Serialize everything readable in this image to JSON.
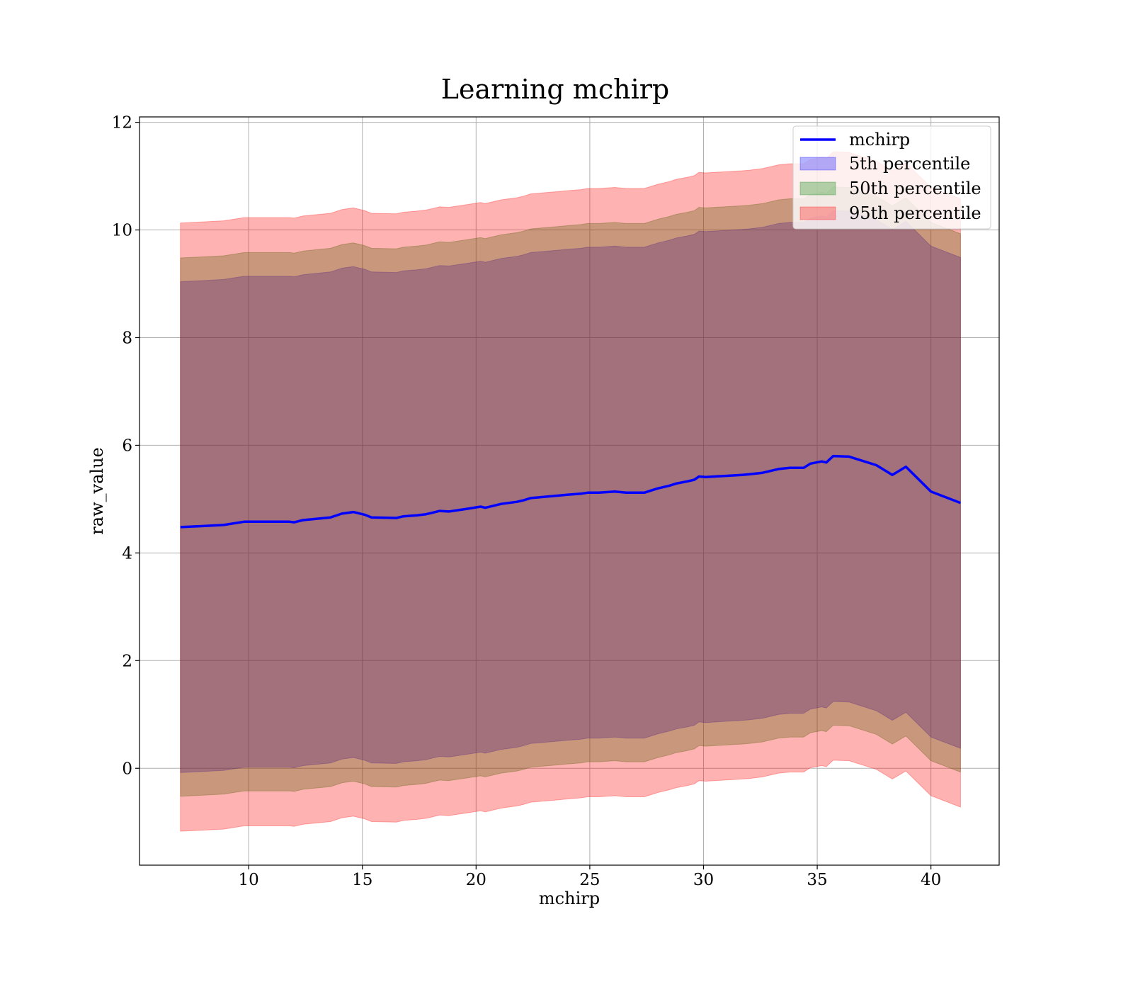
{
  "chart_data": {
    "type": "area",
    "title": "Learning mchirp",
    "xlabel": "mchirp",
    "ylabel": "raw_value",
    "xlim": [
      5.2,
      43.0
    ],
    "ylim": [
      -1.8,
      12.1
    ],
    "xticks": [
      10,
      15,
      20,
      25,
      30,
      35,
      40
    ],
    "yticks": [
      0,
      2,
      4,
      6,
      8,
      10,
      12
    ],
    "grid": true,
    "legend_position": "top-right",
    "line": {
      "name": "mchirp",
      "color": "#0000ff",
      "x": [
        7.0,
        8.0,
        8.9,
        9.8,
        11.8,
        12.0,
        12.4,
        13.6,
        14.1,
        14.6,
        15.1,
        15.4,
        16.5,
        16.6,
        16.8,
        17.4,
        17.8,
        18.1,
        18.4,
        18.8,
        19.6,
        20.2,
        20.4,
        20.7,
        21.1,
        21.8,
        22.1,
        22.4,
        23.5,
        24.0,
        24.6,
        24.9,
        25.4,
        26.1,
        26.6,
        27.4,
        27.7,
        28.0,
        28.5,
        28.8,
        29.3,
        29.6,
        29.8,
        30.1,
        31.3,
        31.7,
        32.0,
        32.6,
        33.3,
        33.8,
        34.4,
        34.7,
        35.2,
        35.4,
        35.7,
        36.4,
        37.6,
        38.3,
        38.9,
        40.0,
        41.3
      ],
      "y": [
        4.48,
        4.5,
        4.52,
        4.58,
        4.58,
        4.57,
        4.61,
        4.66,
        4.73,
        4.76,
        4.71,
        4.66,
        4.65,
        4.66,
        4.68,
        4.7,
        4.72,
        4.75,
        4.78,
        4.77,
        4.82,
        4.86,
        4.84,
        4.87,
        4.91,
        4.95,
        4.98,
        5.02,
        5.06,
        5.08,
        5.1,
        5.12,
        5.12,
        5.14,
        5.12,
        5.12,
        5.16,
        5.2,
        5.25,
        5.29,
        5.33,
        5.36,
        5.42,
        5.41,
        5.44,
        5.45,
        5.46,
        5.49,
        5.56,
        5.58,
        5.58,
        5.66,
        5.7,
        5.68,
        5.8,
        5.79,
        5.63,
        5.45,
        5.6,
        5.14,
        4.93
      ]
    },
    "series": [
      {
        "name": "5th percentile",
        "color": "#0000ff",
        "alpha": 0.3,
        "offset": 4.56
      },
      {
        "name": "50th percentile",
        "color": "#008000",
        "alpha": 0.3,
        "offset": 5.0
      },
      {
        "name": "95th percentile",
        "color": "#ff0000",
        "alpha": 0.3,
        "offset": 5.65
      }
    ]
  },
  "legend": {
    "entries": [
      "mchirp",
      "5th percentile",
      "50th percentile",
      "95th percentile"
    ]
  }
}
